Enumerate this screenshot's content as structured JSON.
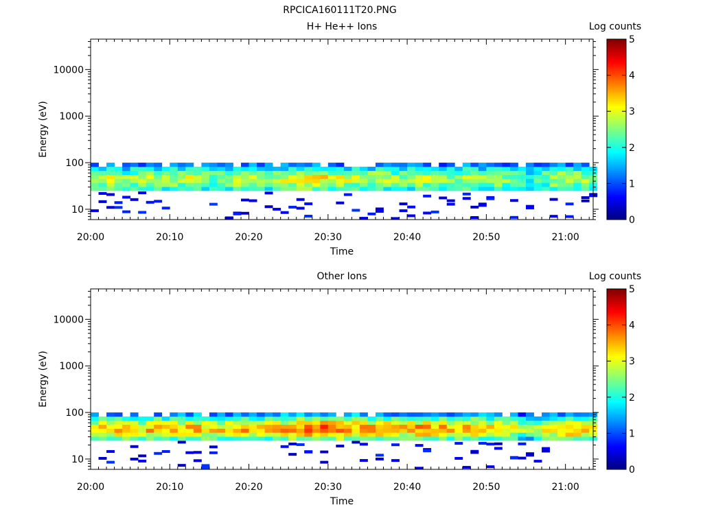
{
  "figure_title": "RPCICA160111T20.PNG",
  "chart_data": [
    {
      "type": "heatmap",
      "title": "H+ He++ Ions",
      "xlabel": "Time",
      "ylabel": "Energy (eV)",
      "x_ticks": [
        "20:00",
        "20:10",
        "20:20",
        "20:30",
        "20:40",
        "20:50",
        "21:00"
      ],
      "xlim_minutes": [
        0,
        63.5
      ],
      "y_scale": "log",
      "ylim": [
        6,
        45000
      ],
      "y_ticks": [
        10,
        100,
        1000,
        10000
      ],
      "colorbar": {
        "label": "Log counts",
        "range": [
          0,
          5
        ],
        "ticks": [
          0,
          1,
          2,
          3,
          4,
          5
        ],
        "colormap": "jet"
      },
      "band_energy_eV": [
        25,
        100
      ],
      "band_profile_log_counts": [
        2.3,
        2.7,
        3.0,
        3.0,
        2.6,
        2.0,
        1.3
      ],
      "activity_by_minute": [
        0.55,
        0.6,
        0.65,
        0.6,
        0.5,
        0.55,
        0.5,
        0.6,
        0.55,
        0.5,
        0.55,
        0.6,
        0.7,
        0.6,
        0.5,
        0.45,
        0.5,
        0.55,
        0.6,
        0.65,
        0.6,
        0.55,
        0.5,
        0.55,
        0.65,
        0.7,
        0.75,
        0.8,
        0.8,
        0.8,
        0.75,
        0.7,
        0.65,
        0.6,
        0.55,
        0.6,
        0.65,
        0.6,
        0.55,
        0.5,
        0.55,
        0.6,
        0.6,
        0.55,
        0.5,
        0.5,
        0.55,
        0.6,
        0.55,
        0.5,
        0.45,
        0.5,
        0.45,
        0.4,
        0.3,
        0.2,
        0.35,
        0.45,
        0.55,
        0.6,
        0.6,
        0.55,
        0.5,
        0.5
      ],
      "sparse_low_energy_hits": "isolated 0-1 log-count bins between 6 and 25 eV"
    },
    {
      "type": "heatmap",
      "title": "Other Ions",
      "xlabel": "Time",
      "ylabel": "Energy (eV)",
      "x_ticks": [
        "20:00",
        "20:10",
        "20:20",
        "20:30",
        "20:40",
        "20:50",
        "21:00"
      ],
      "xlim_minutes": [
        0,
        63.5
      ],
      "y_scale": "log",
      "ylim": [
        6,
        45000
      ],
      "y_ticks": [
        10,
        100,
        1000,
        10000
      ],
      "colorbar": {
        "label": "Log counts",
        "range": [
          0,
          5
        ],
        "ticks": [
          0,
          1,
          2,
          3,
          4,
          5
        ],
        "colormap": "jet"
      },
      "band_energy_eV": [
        25,
        100
      ],
      "band_profile_log_counts": [
        2.4,
        3.0,
        3.5,
        3.4,
        2.9,
        2.2,
        1.4
      ],
      "activity_by_minute": [
        0.6,
        0.65,
        0.7,
        0.7,
        0.65,
        0.6,
        0.6,
        0.7,
        0.75,
        0.7,
        0.65,
        0.7,
        0.75,
        0.7,
        0.65,
        0.6,
        0.65,
        0.7,
        0.75,
        0.8,
        0.75,
        0.7,
        0.65,
        0.7,
        0.75,
        0.85,
        0.9,
        0.95,
        1.0,
        1.0,
        0.95,
        0.9,
        0.85,
        0.8,
        0.75,
        0.8,
        0.85,
        0.8,
        0.75,
        0.7,
        0.75,
        0.8,
        0.85,
        0.8,
        0.75,
        0.7,
        0.75,
        0.8,
        0.75,
        0.7,
        0.65,
        0.6,
        0.55,
        0.5,
        0.35,
        0.25,
        0.4,
        0.55,
        0.7,
        0.75,
        0.8,
        0.75,
        0.7,
        0.7
      ],
      "sparse_low_energy_hits": "isolated 0-1 log-count bins between 6 and 25 eV"
    }
  ]
}
